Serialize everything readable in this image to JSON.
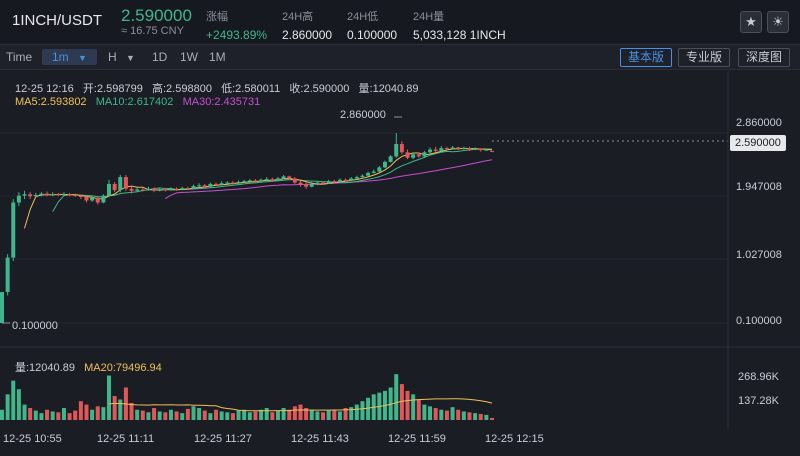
{
  "header": {
    "pair": "1INCH/USDT",
    "last_price": "2.590000",
    "cny": "≈ 16.75 CNY",
    "change_label": "涨幅",
    "change_value": "+2493.89%",
    "high_label": "24H高",
    "high_value": "2.860000",
    "low_label": "24H低",
    "low_value": "0.100000",
    "vol_label": "24H量",
    "vol_value": "5,033,128 1INCH",
    "star_icon": "star-icon",
    "theme_icon": "sun-icon"
  },
  "toolbar": {
    "time_label": "Time",
    "interval_selected": "1m",
    "intervals": [
      "H",
      "1D",
      "1W",
      "1M"
    ],
    "views": [
      "基本版",
      "专业版",
      "深度图"
    ],
    "selected_view": "基本版"
  },
  "info": {
    "datetime": "12-25 12:16",
    "open": "开:2.598799",
    "high": "高:2.598800",
    "low": "低:2.580011",
    "close": "收:2.590000",
    "volume": "量:12040.89",
    "ma5": "MA5:2.593802",
    "ma10": "MA10:2.617402",
    "ma30": "MA30:2.435731"
  },
  "volume_info": {
    "vol": "量:12040.89",
    "ma20": "MA20:79496.94"
  },
  "colors": {
    "up": "#3fb68b",
    "down": "#e15757",
    "ma5": "#f0c05a",
    "ma10": "#3fb68b",
    "ma30": "#c84fd0"
  },
  "chart_data": {
    "type": "candlestick",
    "y_ticks": [
      "2.860000",
      "1.947008",
      "1.027008",
      "0.100000"
    ],
    "current_price_tag": "2.590000",
    "high_marker": "2.860000",
    "low_marker": "0.100000",
    "volume_ticks": [
      "268.96K",
      "137.28K"
    ],
    "x_ticks": [
      "12-25 10:55",
      "12-25 11:11",
      "12-25 11:27",
      "12-25 11:43",
      "12-25 11:59",
      "12-25 12:15"
    ],
    "ylim": [
      0.1,
      2.86
    ],
    "candles": [
      [
        0.1,
        0.55,
        0.55,
        0.1
      ],
      [
        0.55,
        1.05,
        1.1,
        0.5
      ],
      [
        1.05,
        1.85,
        1.9,
        1.0
      ],
      [
        1.85,
        1.95,
        2.0,
        1.8
      ],
      [
        1.95,
        1.97,
        2.02,
        1.9
      ],
      [
        1.97,
        1.94,
        2.0,
        1.9
      ],
      [
        1.94,
        1.96,
        1.99,
        1.92
      ],
      [
        1.96,
        1.98,
        2.0,
        1.94
      ],
      [
        1.98,
        1.96,
        2.01,
        1.94
      ],
      [
        1.96,
        1.97,
        2.0,
        1.94
      ],
      [
        1.97,
        1.96,
        1.99,
        1.94
      ],
      [
        1.96,
        1.97,
        2.0,
        1.95
      ],
      [
        1.97,
        1.96,
        1.99,
        1.94
      ],
      [
        1.96,
        1.95,
        1.98,
        1.93
      ],
      [
        1.95,
        1.93,
        1.97,
        1.9
      ],
      [
        1.93,
        1.88,
        1.95,
        1.85
      ],
      [
        1.88,
        1.92,
        1.94,
        1.86
      ],
      [
        1.92,
        1.85,
        1.93,
        1.82
      ],
      [
        1.85,
        1.95,
        1.97,
        1.84
      ],
      [
        1.95,
        2.12,
        2.18,
        1.94
      ],
      [
        2.12,
        2.03,
        2.15,
        2.0
      ],
      [
        2.03,
        2.22,
        2.25,
        2.0
      ],
      [
        2.22,
        2.05,
        2.25,
        2.02
      ],
      [
        2.05,
        2.02,
        2.08,
        1.98
      ],
      [
        2.02,
        2.04,
        2.07,
        2.0
      ],
      [
        2.04,
        2.03,
        2.06,
        2.01
      ],
      [
        2.03,
        2.05,
        2.08,
        2.02
      ],
      [
        2.05,
        2.02,
        2.07,
        2.0
      ],
      [
        2.02,
        2.04,
        2.06,
        2.01
      ],
      [
        2.04,
        2.03,
        2.06,
        2.01
      ],
      [
        2.03,
        2.05,
        2.07,
        2.02
      ],
      [
        2.05,
        2.04,
        2.07,
        2.02
      ],
      [
        2.04,
        2.06,
        2.08,
        2.03
      ],
      [
        2.06,
        2.05,
        2.08,
        2.03
      ],
      [
        2.05,
        2.09,
        2.11,
        2.04
      ],
      [
        2.09,
        2.1,
        2.13,
        2.07
      ],
      [
        2.1,
        2.08,
        2.12,
        2.06
      ],
      [
        2.08,
        2.12,
        2.14,
        2.07
      ],
      [
        2.12,
        2.11,
        2.14,
        2.09
      ],
      [
        2.11,
        2.13,
        2.16,
        2.1
      ],
      [
        2.13,
        2.14,
        2.16,
        2.12
      ],
      [
        2.14,
        2.13,
        2.16,
        2.11
      ],
      [
        2.13,
        2.15,
        2.17,
        2.12
      ],
      [
        2.15,
        2.16,
        2.18,
        2.14
      ],
      [
        2.16,
        2.17,
        2.19,
        2.15
      ],
      [
        2.17,
        2.16,
        2.19,
        2.14
      ],
      [
        2.16,
        2.18,
        2.2,
        2.15
      ],
      [
        2.18,
        2.19,
        2.22,
        2.17
      ],
      [
        2.19,
        2.17,
        2.21,
        2.15
      ],
      [
        2.17,
        2.2,
        2.22,
        2.16
      ],
      [
        2.2,
        2.23,
        2.25,
        2.19
      ],
      [
        2.23,
        2.2,
        2.24,
        2.18
      ],
      [
        2.2,
        2.14,
        2.22,
        2.12
      ],
      [
        2.14,
        2.11,
        2.17,
        2.08
      ],
      [
        2.11,
        2.08,
        2.14,
        2.05
      ],
      [
        2.08,
        2.12,
        2.15,
        2.07
      ],
      [
        2.12,
        2.14,
        2.16,
        2.1
      ],
      [
        2.14,
        2.13,
        2.16,
        2.11
      ],
      [
        2.13,
        2.16,
        2.18,
        2.12
      ],
      [
        2.16,
        2.15,
        2.18,
        2.13
      ],
      [
        2.15,
        2.18,
        2.2,
        2.14
      ],
      [
        2.18,
        2.17,
        2.2,
        2.15
      ],
      [
        2.17,
        2.2,
        2.22,
        2.16
      ],
      [
        2.2,
        2.22,
        2.24,
        2.19
      ],
      [
        2.22,
        2.24,
        2.26,
        2.21
      ],
      [
        2.24,
        2.28,
        2.3,
        2.23
      ],
      [
        2.28,
        2.3,
        2.33,
        2.27
      ],
      [
        2.3,
        2.36,
        2.38,
        2.29
      ],
      [
        2.36,
        2.44,
        2.46,
        2.35
      ],
      [
        2.44,
        2.52,
        2.54,
        2.43
      ],
      [
        2.52,
        2.7,
        2.86,
        2.5
      ],
      [
        2.7,
        2.58,
        2.74,
        2.55
      ],
      [
        2.58,
        2.5,
        2.62,
        2.48
      ],
      [
        2.5,
        2.55,
        2.58,
        2.48
      ],
      [
        2.55,
        2.52,
        2.58,
        2.5
      ],
      [
        2.52,
        2.58,
        2.6,
        2.5
      ],
      [
        2.58,
        2.62,
        2.65,
        2.56
      ],
      [
        2.62,
        2.6,
        2.66,
        2.58
      ],
      [
        2.6,
        2.64,
        2.67,
        2.59
      ],
      [
        2.64,
        2.63,
        2.66,
        2.61
      ],
      [
        2.63,
        2.65,
        2.67,
        2.62
      ],
      [
        2.65,
        2.63,
        2.66,
        2.61
      ],
      [
        2.63,
        2.64,
        2.66,
        2.62
      ],
      [
        2.64,
        2.62,
        2.66,
        2.6
      ],
      [
        2.62,
        2.63,
        2.65,
        2.61
      ],
      [
        2.63,
        2.61,
        2.64,
        2.59
      ],
      [
        2.61,
        2.62,
        2.63,
        2.6
      ],
      [
        2.6,
        2.59,
        2.6,
        2.58
      ]
    ],
    "volumes": [
      60,
      150,
      230,
      180,
      90,
      70,
      55,
      40,
      60,
      50,
      45,
      70,
      40,
      55,
      110,
      90,
      60,
      80,
      75,
      260,
      140,
      120,
      190,
      100,
      60,
      55,
      45,
      70,
      50,
      45,
      60,
      50,
      40,
      65,
      80,
      70,
      55,
      40,
      60,
      50,
      45,
      40,
      55,
      60,
      45,
      50,
      60,
      70,
      45,
      55,
      70,
      60,
      80,
      90,
      70,
      60,
      50,
      45,
      55,
      60,
      50,
      70,
      75,
      90,
      110,
      130,
      150,
      160,
      170,
      190,
      268,
      210,
      170,
      150,
      120,
      90,
      80,
      70,
      60,
      55,
      75,
      60,
      50,
      45,
      40,
      35,
      30,
      12
    ],
    "vol_max": 268.96
  }
}
